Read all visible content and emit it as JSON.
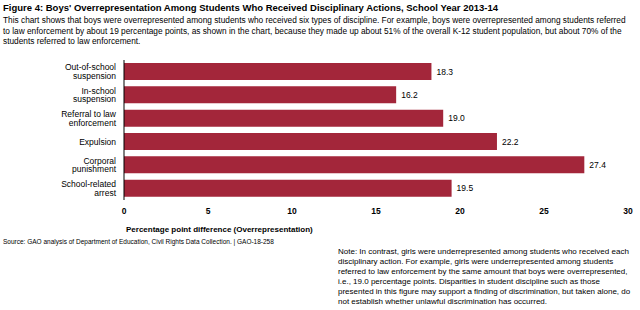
{
  "chart_data": {
    "type": "bar",
    "orientation": "horizontal",
    "title": "Figure 4: Boys' Overrepresentation Among Students Who Received Disciplinary Actions, School Year 2013-14",
    "subtitle": "This chart shows that boys were overrepresented among students who received six types of discipline. For example, boys were overrepresented among students referred to law enforcement by about 19 percentage points, as shown in the chart, because they made up about 51% of the overall K-12 student population, but about 70% of the students referred to law enforcement.",
    "categories": [
      "Out-of-school suspension",
      "In-school suspension",
      "Referral to law enforcement",
      "Expulsion",
      "Corporal punishment",
      "School-related arrest"
    ],
    "values": [
      18.3,
      16.2,
      19.0,
      22.2,
      27.4,
      19.5
    ],
    "value_labels": [
      "18.3",
      "16.2",
      "19.0",
      "22.2",
      "27.4",
      "19.5"
    ],
    "data_labels": true,
    "color": "#a3263a",
    "xlabel": "Percentage point difference (Overrepresentation)",
    "xlim": [
      0,
      30
    ],
    "xticks": [
      0,
      5,
      10,
      15,
      20,
      25,
      30
    ],
    "grid": false,
    "source": "Source: GAO analysis of Department of Education, Civil Rights Data Collection.  |  GAO-18-258",
    "note": "Note: In contrast, girls were underrepresented among students who received each disciplinary action. For example, girls were underrepresented among students referred to law enforcement by the same amount that boys were overrepresented, i.e., 19.0 percentage points. Disparities in student discipline such as those presented in this figure may support a finding of discrimination, but taken alone, do not establish whether unlawful discrimination has occurred."
  }
}
